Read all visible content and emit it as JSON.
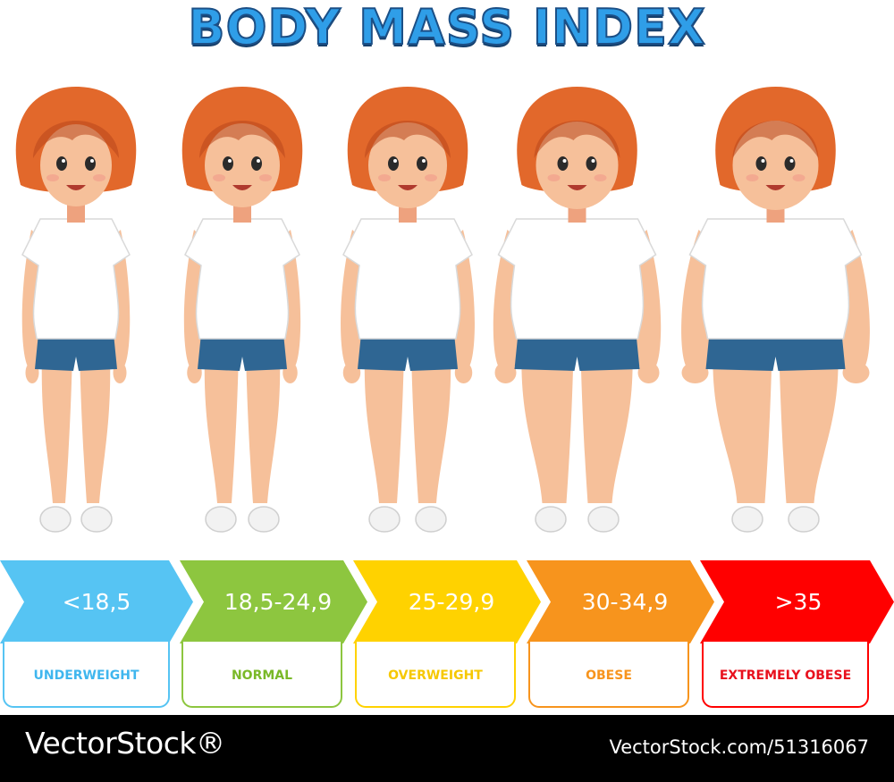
{
  "title": "BODY MASS INDEX",
  "colors": {
    "title_fill": "#2f9ee8",
    "title_outline": "#1b4f86",
    "hair": "#e2682b",
    "hair_dark": "#b8461b",
    "skin": "#f6c09a",
    "skin_shade": "#eea27e",
    "shirt": "#ffffff",
    "shorts": "#2f6693",
    "shoe": "#f2f2f2"
  },
  "categories": [
    {
      "range": "<18,5",
      "label": "UNDERWEIGHT",
      "color": "#56c4f3",
      "label_color": "#3fb6ee",
      "icon": "girl-figure-icon"
    },
    {
      "range": "18,5-24,9",
      "label": "NORMAL",
      "color": "#8dc63f",
      "label_color": "#7ab928",
      "icon": "girl-figure-icon"
    },
    {
      "range": "25-29,9",
      "label": "OVERWEIGHT",
      "color": "#ffd200",
      "label_color": "#f6c800",
      "icon": "girl-figure-icon"
    },
    {
      "range": "30-34,9",
      "label": "OBESE",
      "color": "#f7941d",
      "label_color": "#f7941d",
      "icon": "girl-figure-icon"
    },
    {
      "range": ">35",
      "label": "EXTREMELY OBESE",
      "color": "#ff0000",
      "label_color": "#e8101d",
      "icon": "girl-figure-icon"
    }
  ],
  "footer": {
    "logo": "VectorStock®",
    "url": "VectorStock.com/51316067"
  }
}
